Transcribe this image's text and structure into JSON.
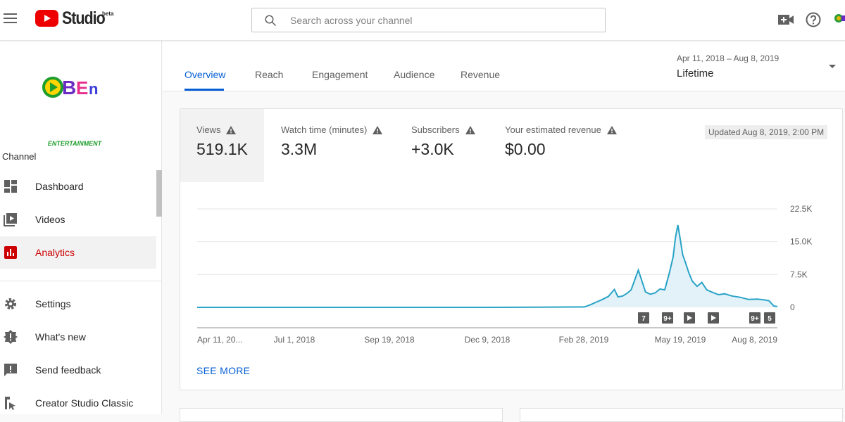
{
  "header": {
    "app_name": "Studio",
    "beta_label": "beta",
    "search_placeholder": "Search across your channel"
  },
  "sidebar": {
    "channel_name": "ENTERTAINMENT",
    "channel_heading": "Channel",
    "items": [
      {
        "label": "Dashboard",
        "icon": "dashboard-icon"
      },
      {
        "label": "Videos",
        "icon": "videos-icon"
      },
      {
        "label": "Analytics",
        "icon": "analytics-icon",
        "active": true
      },
      {
        "label": "Settings",
        "icon": "gear-icon"
      },
      {
        "label": "What's new",
        "icon": "whats-new-icon"
      },
      {
        "label": "Send feedback",
        "icon": "feedback-icon"
      },
      {
        "label": "Creator Studio Classic",
        "icon": "classic-icon"
      }
    ]
  },
  "tabs": [
    "Overview",
    "Reach",
    "Engagement",
    "Audience",
    "Revenue"
  ],
  "date_range": {
    "range": "Apr 11, 2018 – Aug 8, 2019",
    "label": "Lifetime"
  },
  "metrics": [
    {
      "label": "Views",
      "value": "519.1K"
    },
    {
      "label": "Watch time (minutes)",
      "value": "3.3M"
    },
    {
      "label": "Subscribers",
      "value": "+3.0K"
    },
    {
      "label": "Your estimated revenue",
      "value": "$0.00"
    }
  ],
  "updated": "Updated Aug 8, 2019, 2:00 PM",
  "see_more": "SEE MORE",
  "colors": {
    "accent": "#065fd4",
    "active_nav": "#cc0000",
    "line": "#29a3c7",
    "fill": "#e3f2f8"
  },
  "chart_data": {
    "type": "area",
    "series_metric": "Views",
    "x_tick_labels": [
      "Apr 11, 20...",
      "Jul 1, 2018",
      "Sep 19, 2018",
      "Dec 9, 2018",
      "Feb 28, 2019",
      "May 19, 2019",
      "Aug 8, 2019"
    ],
    "y_tick_labels": [
      "22.5K",
      "15.0K",
      "7.5K",
      "0"
    ],
    "ylim": [
      0,
      22500
    ],
    "grid": true,
    "x": [
      "2018-04-11",
      "2018-07-01",
      "2018-09-19",
      "2018-12-09",
      "2019-02-28",
      "2019-03-05",
      "2019-03-10",
      "2019-03-15",
      "2019-03-20",
      "2019-03-25",
      "2019-03-28",
      "2019-04-01",
      "2019-04-05",
      "2019-04-08",
      "2019-04-12",
      "2019-04-14",
      "2019-04-17",
      "2019-04-20",
      "2019-04-24",
      "2019-04-28",
      "2019-05-02",
      "2019-05-06",
      "2019-05-10",
      "2019-05-13",
      "2019-05-15",
      "2019-05-17",
      "2019-05-19",
      "2019-05-21",
      "2019-05-23",
      "2019-05-26",
      "2019-05-29",
      "2019-06-02",
      "2019-06-06",
      "2019-06-10",
      "2019-06-15",
      "2019-06-20",
      "2019-06-25",
      "2019-07-01",
      "2019-07-08",
      "2019-07-15",
      "2019-07-22",
      "2019-07-28",
      "2019-08-01",
      "2019-08-05",
      "2019-08-08"
    ],
    "values": [
      0,
      0,
      0,
      0,
      100,
      600,
      1200,
      1800,
      2500,
      4100,
      2400,
      2600,
      3300,
      4000,
      7000,
      8500,
      6000,
      3500,
      3000,
      3300,
      4200,
      4000,
      8000,
      11500,
      16000,
      18800,
      15500,
      12000,
      10500,
      8000,
      6000,
      4800,
      5700,
      4000,
      3400,
      2900,
      3100,
      2600,
      2300,
      1800,
      1900,
      1700,
      1500,
      300,
      200
    ],
    "annotations": [
      "7",
      "9+",
      "play",
      "play",
      "9+",
      "5"
    ]
  }
}
